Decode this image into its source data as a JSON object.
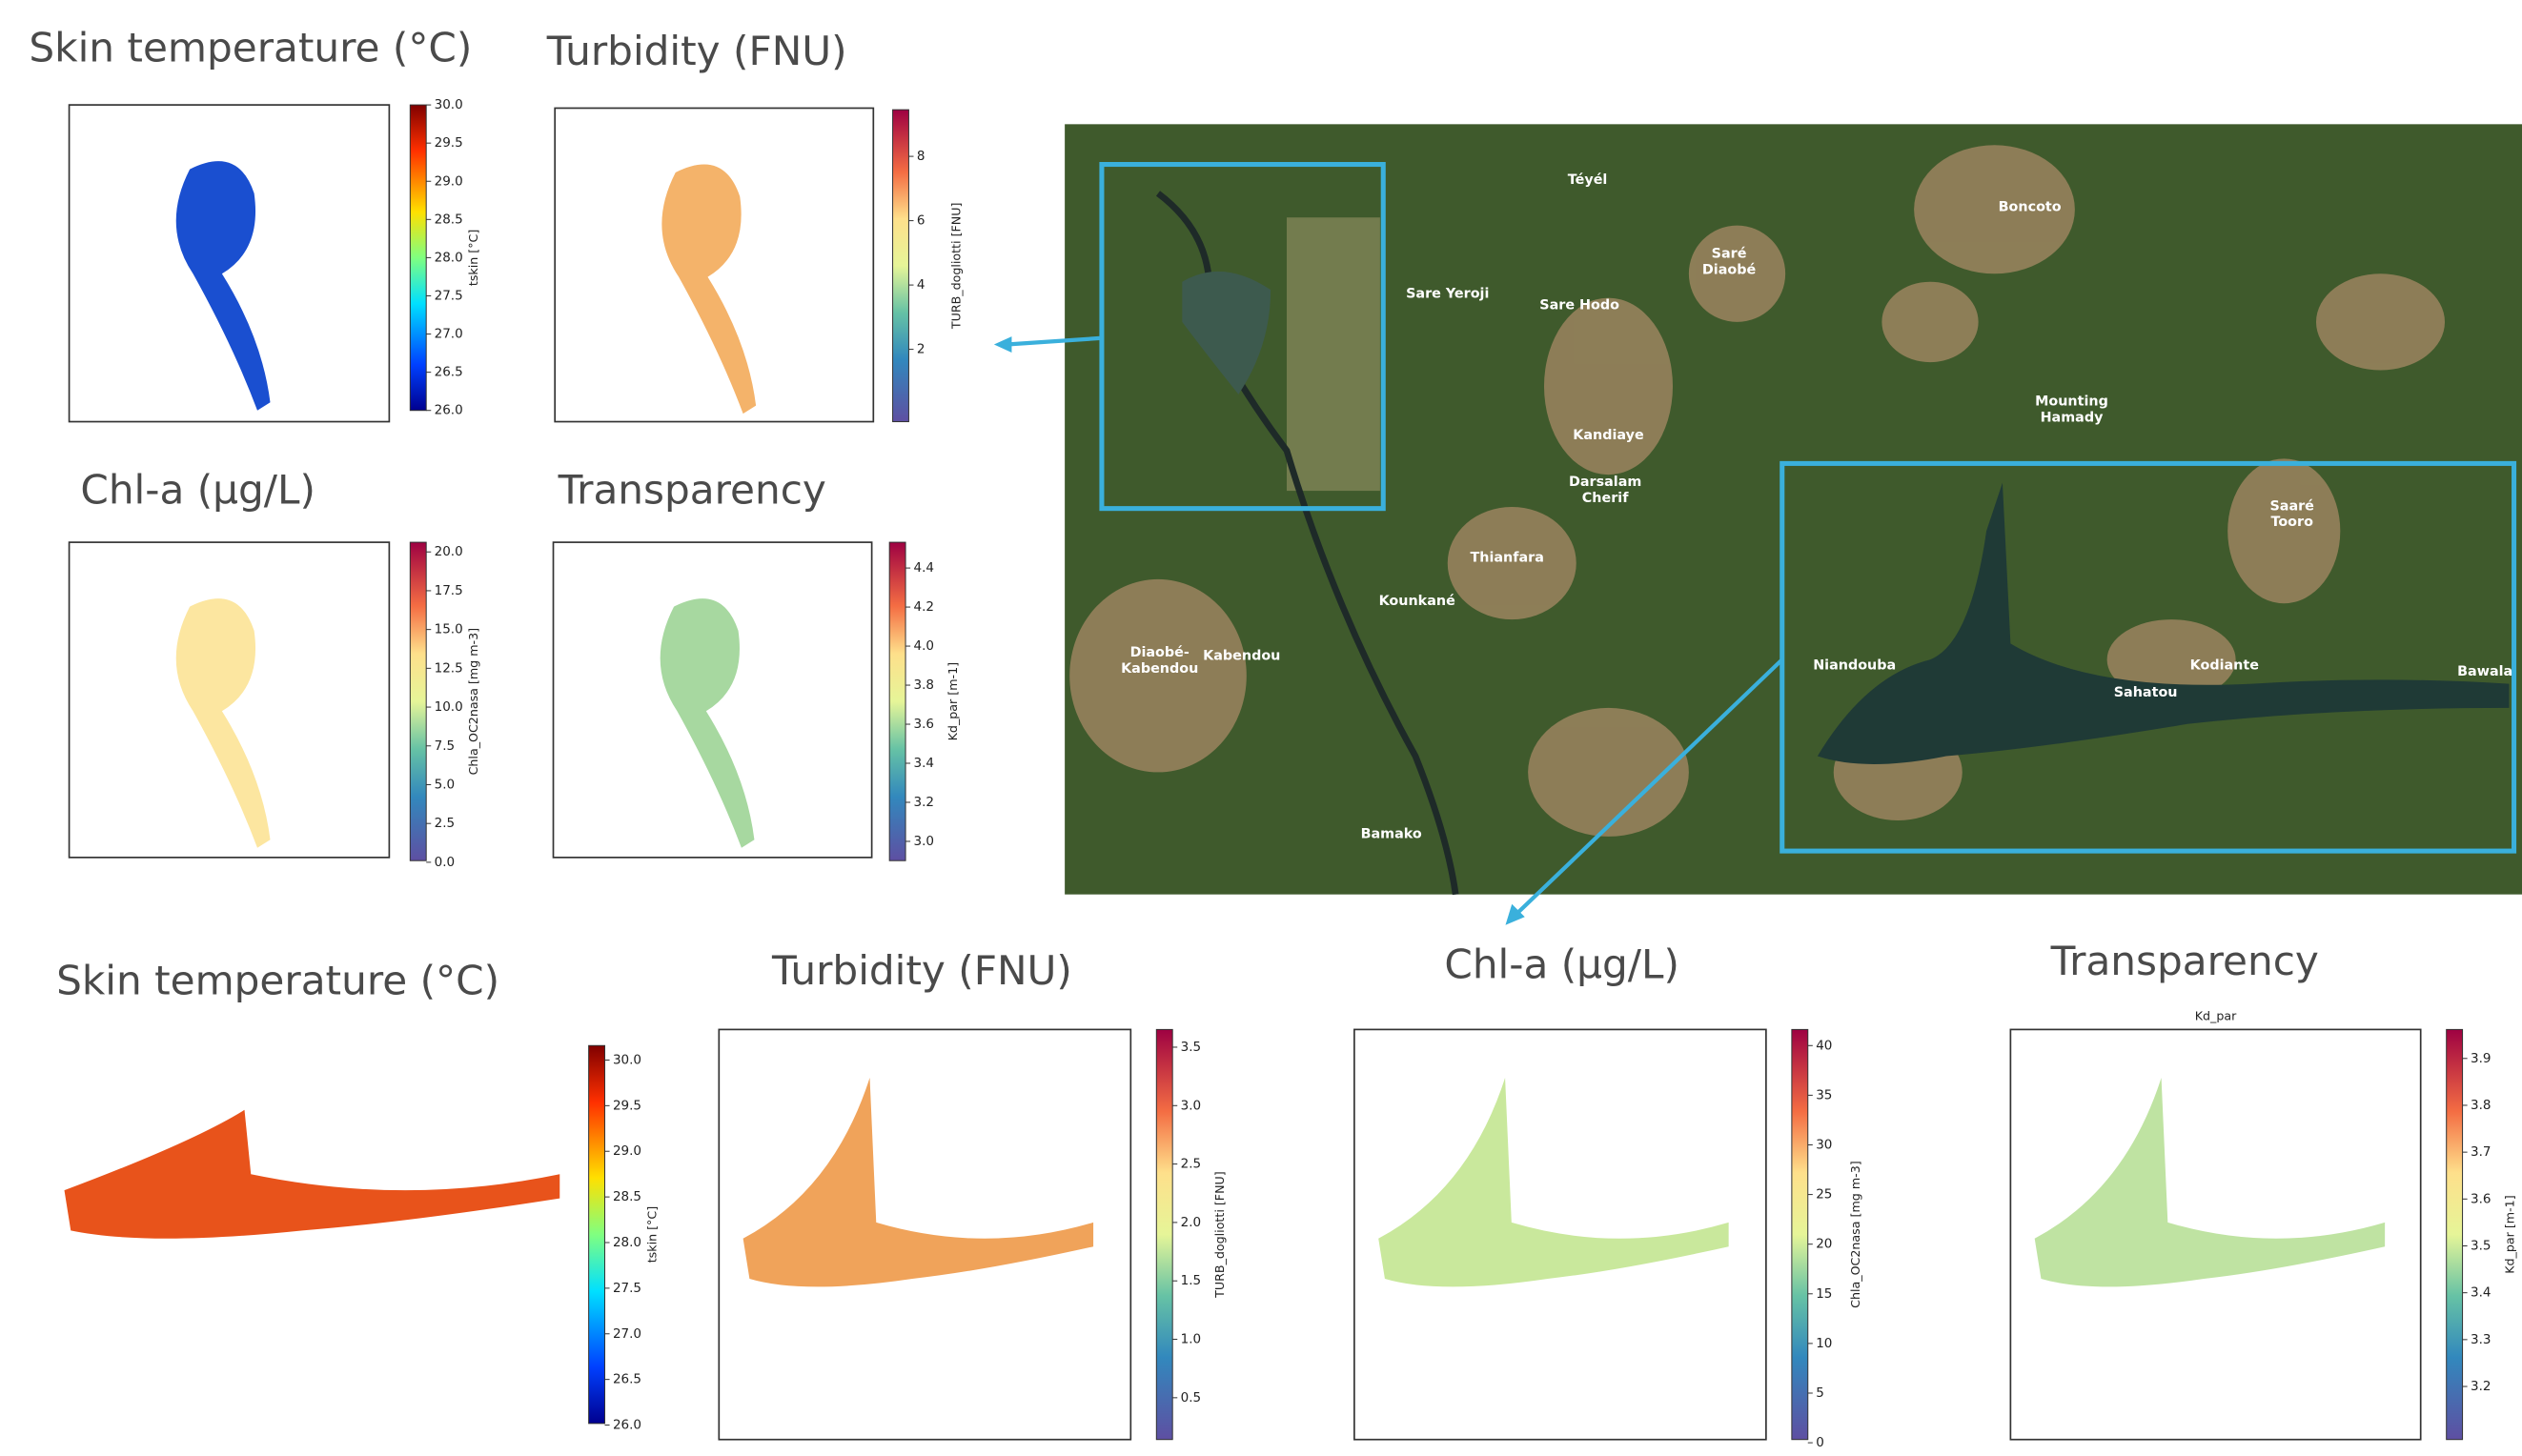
{
  "panels": [
    {
      "title": "Skin temperature (°C)",
      "colorbar_label": "tskin [°C]",
      "ticks": [
        "30.0",
        "29.5",
        "29.0",
        "28.5",
        "28.0",
        "27.5",
        "27.0",
        "26.5",
        "26.0"
      ]
    },
    {
      "title": "Turbidity (FNU)",
      "colorbar_label": "TURB_dogliotti [FNU]",
      "ticks": [
        "8",
        "6",
        "4",
        "2"
      ]
    },
    {
      "title": "Chl-a (µg/L)",
      "colorbar_label": "Chla_OC2nasa [mg m-3]",
      "ticks": [
        "20.0",
        "17.5",
        "15.0",
        "12.5",
        "10.0",
        "7.5",
        "5.0",
        "2.5",
        "0.0"
      ]
    },
    {
      "title": "Transparency",
      "colorbar_label": "Kd_par [m-1]",
      "ticks": [
        "4.4",
        "4.2",
        "4.0",
        "3.8",
        "3.6",
        "3.4",
        "3.2",
        "3.0"
      ]
    },
    {
      "title": "Skin temperature (°C)",
      "colorbar_label": "tskin [°C]",
      "ticks": [
        "30.0",
        "29.5",
        "29.0",
        "28.5",
        "28.0",
        "27.5",
        "27.0",
        "26.5",
        "26.0"
      ]
    },
    {
      "title": "Turbidity (FNU)",
      "colorbar_label": "TURB_dogliotti [FNU]",
      "ticks": [
        "3.5",
        "3.0",
        "2.5",
        "2.0",
        "1.5",
        "1.0",
        "0.5"
      ]
    },
    {
      "title": "Chl-a (µg/L)",
      "colorbar_label": "Chla_OC2nasa [mg m-3]",
      "ticks": [
        "40",
        "35",
        "30",
        "25",
        "20",
        "15",
        "10",
        "5",
        "0"
      ]
    },
    {
      "title": "Transparency",
      "colorbar_label": "Kd_par [m-1]",
      "ticks": [
        "3.9",
        "3.8",
        "3.7",
        "3.6",
        "3.5",
        "3.4",
        "3.3",
        "3.2"
      ],
      "plot_header": "Kd_par"
    }
  ],
  "place_names": [
    [
      "Téyél"
    ],
    [
      "Boncoto"
    ],
    [
      "Saré",
      "Diaobé"
    ],
    [
      "Sare Yeroji"
    ],
    [
      "Sare Hodo"
    ],
    [
      "Kandiaye"
    ],
    [
      "Mounting",
      "Hamady"
    ],
    [
      "Darsalam",
      "Cherif"
    ],
    [
      "Saaré",
      "Tooro"
    ],
    [
      "Thianfara"
    ],
    [
      "Kounkané"
    ],
    [
      "Diaobé-",
      "Kabendou"
    ],
    [
      "Kabendou"
    ],
    [
      "Niandouba"
    ],
    [
      "Kodiante"
    ],
    [
      "Sahatou"
    ],
    [
      "Bawala"
    ],
    [
      "Bamako"
    ]
  ]
}
